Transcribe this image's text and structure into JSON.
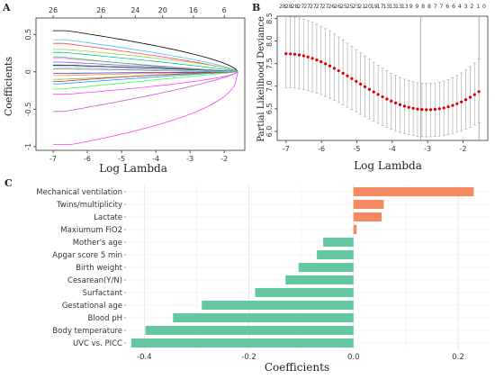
{
  "panel_labels": {
    "a": "A",
    "b": "B",
    "c": "C"
  },
  "chart_data": [
    {
      "id": "A",
      "type": "line",
      "xlabel": "Log Lambda",
      "ylabel": "Coefficients",
      "xlim": [
        -7.5,
        -1.4
      ],
      "ylim": [
        -1.05,
        0.72
      ],
      "x_ticks": [
        -7,
        -6,
        -5,
        -4,
        -3,
        -2
      ],
      "y_ticks": [
        -1.0,
        -0.5,
        0.0,
        0.5
      ],
      "top_axis": {
        "ticks": [
          -7,
          -5.6,
          -4.6,
          -3.8,
          -2.9,
          -2.0
        ],
        "labels": [
          "26",
          "26",
          "24",
          "20",
          "16",
          "6"
        ]
      },
      "zero_at": -1.6,
      "series": [
        {
          "color": "#ff40ff",
          "v": -0.97,
          "k": 2.3
        },
        {
          "color": "#000000",
          "v": 0.55,
          "k": 1.6
        },
        {
          "color": "#c060c0",
          "v": -0.53,
          "k": 1.3
        },
        {
          "color": "#40c0ff",
          "v": 0.43,
          "k": 1.4
        },
        {
          "color": "#ff4040",
          "v": 0.38,
          "k": 1.3
        },
        {
          "color": "#a0d040",
          "v": 0.3,
          "k": 1.5
        },
        {
          "color": "#00c0a0",
          "v": 0.26,
          "k": 1.2
        },
        {
          "color": "#ff80ff",
          "v": 0.18,
          "k": 1.0
        },
        {
          "color": "#6060ff",
          "v": 0.13,
          "k": 1.1
        },
        {
          "color": "#000000",
          "v": 0.09,
          "k": 1.2
        },
        {
          "color": "#808080",
          "v": 0.04,
          "k": 1.0
        },
        {
          "color": "#40ff40",
          "v": -0.23,
          "k": 1.0
        },
        {
          "color": "#ff40ff",
          "v": -0.3,
          "k": 1.6
        },
        {
          "color": "#00a0ff",
          "v": -0.16,
          "k": 0.9
        },
        {
          "color": "#a0a040",
          "v": -0.1,
          "k": 1.0
        },
        {
          "color": "#ff8040",
          "v": -0.05,
          "k": 0.8
        },
        {
          "color": "#4040c0",
          "v": -0.02,
          "k": 0.9
        },
        {
          "color": "#40c040",
          "v": 0.2,
          "k": 0.8
        },
        {
          "color": "#c04040",
          "v": -0.13,
          "k": 0.7
        },
        {
          "color": "#80c0ff",
          "v": 0.07,
          "k": 0.8
        }
      ]
    },
    {
      "id": "B",
      "type": "line",
      "xlabel": "Log Lambda",
      "ylabel": "Partial Likelihood Deviance",
      "xlim": [
        -7.25,
        -1.3
      ],
      "ylim": [
        5.8,
        8.55
      ],
      "x_ticks": [
        -7,
        -6,
        -5,
        -4,
        -3,
        -2
      ],
      "y_ticks": [
        6.0,
        6.5,
        7.0,
        7.5,
        8.0,
        8.5
      ],
      "top_axis_labels": [
        "28",
        "28",
        "28",
        "27",
        "27",
        "27",
        "27",
        "27",
        "26",
        "26",
        "25",
        "25",
        "23",
        "21",
        "20",
        "19",
        "17",
        "13",
        "13",
        "13",
        "13",
        "9",
        "9",
        "8",
        "8",
        "7",
        "7",
        "6",
        "6",
        "4",
        "3",
        "2",
        "1",
        "0"
      ],
      "vlines": [
        -3.2,
        -1.55
      ],
      "x_range": [
        -7.0,
        -1.55
      ],
      "points": 45,
      "y_start": 7.72,
      "y_min": 6.48,
      "x_min": -3.0,
      "y_end": 6.88,
      "err_low": 0.75,
      "err_high": 0.82,
      "err_low_at_min": 0.6,
      "err_high_at_min": 0.58,
      "point_color": "#dd0000",
      "bar_color": "#b0b0b0"
    },
    {
      "id": "C",
      "type": "bar",
      "xlabel": "Coefficients",
      "xlim": [
        -0.435,
        0.262
      ],
      "x_ticks": [
        -0.4,
        -0.2,
        0.0,
        0.2
      ],
      "x_tick_labels": [
        "-0.4",
        "-0.2",
        "0.0",
        "0.2"
      ],
      "categories": [
        "Mechanical ventilation",
        "Twins/multiplicity",
        "Lactate",
        "Maxiumum FiO2",
        "Mother's age",
        "Apgar score 5 min",
        "Birth weight",
        "Cesarean(Y/N)",
        "Surfactant",
        "Gestational age",
        "Blood pH",
        "Body temperature",
        "UVC vs. PICC"
      ],
      "values": [
        0.23,
        0.058,
        0.054,
        0.006,
        -0.058,
        -0.07,
        -0.105,
        -0.13,
        -0.188,
        -0.29,
        -0.345,
        -0.398,
        -0.425
      ],
      "colors": {
        "positive": "#f58b63",
        "negative": "#66c8a3"
      }
    }
  ]
}
